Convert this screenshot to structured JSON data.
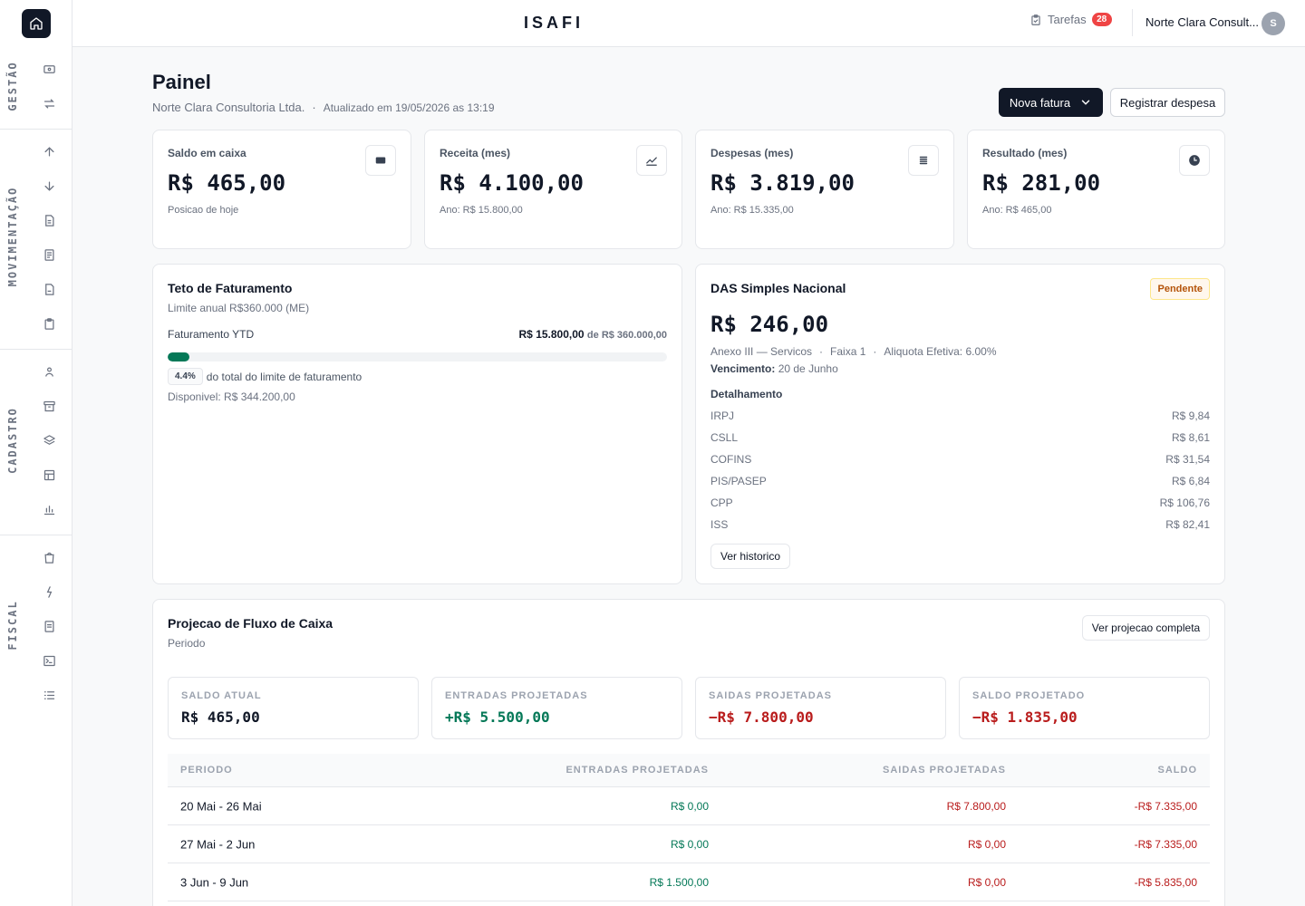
{
  "app": {
    "brand": "ISAFI"
  },
  "topbar": {
    "tasks_label": "Tarefas",
    "tasks_count": "28",
    "company": "Norte Clara Consult...",
    "avatar_initial": "S"
  },
  "sidebar": {
    "sections": [
      {
        "label": "GESTÃO",
        "icons": [
          "wallet-icon",
          "transfer-icon"
        ]
      },
      {
        "label": "MOVIMENTAÇÃO",
        "icons": [
          "arrow-up-icon",
          "arrow-down-icon",
          "document-icon",
          "invoice-icon",
          "receipt-icon",
          "clipboard-icon"
        ]
      },
      {
        "label": "CADASTRO",
        "icons": [
          "user-icon",
          "archive-icon",
          "layers-icon",
          "table-icon",
          "bar-chart-icon"
        ]
      },
      {
        "label": "FISCAL",
        "icons": [
          "shopping-bag-icon",
          "dollar-icon",
          "file-text-icon",
          "terminal-icon",
          "list-icon"
        ]
      }
    ]
  },
  "header": {
    "title": "Painel",
    "company": "Norte Clara Consultoria Ltda.",
    "updated": "Atualizado em 19/05/2026 as 13:19",
    "new_invoice": "Nova fatura",
    "register_expense": "Registrar despesa"
  },
  "stats": [
    {
      "label": "Saldo em caixa",
      "value": "R$ 465,00",
      "sub": "Posicao de hoje",
      "icon": "wallet-icon"
    },
    {
      "label": "Receita (mes)",
      "value": "R$ 4.100,00",
      "sub": "Ano: R$ 15.800,00",
      "icon": "trend-up-icon"
    },
    {
      "label": "Despesas (mes)",
      "value": "R$ 3.819,00",
      "sub": "Ano: R$ 15.335,00",
      "icon": "list-icon"
    },
    {
      "label": "Resultado (mes)",
      "value": "R$ 281,00",
      "sub": "Ano: R$ 465,00",
      "icon": "clock-icon"
    }
  ],
  "ceiling": {
    "title": "Teto de Faturamento",
    "subtitle": "Limite anual R$360.000 (ME)",
    "ytd_label": "Faturamento YTD",
    "ytd_value": "R$ 15.800,00",
    "ytd_of": "de R$ 360.000,00",
    "progress_pct": 4.4,
    "pct_badge": "4.4%",
    "pct_text": "do total do limite de faturamento",
    "available": "Disponivel: R$ 344.200,00"
  },
  "das": {
    "title": "DAS Simples Nacional",
    "status": "Pendente",
    "value": "R$ 246,00",
    "annex": "Anexo III — Servicos",
    "bracket": "Faixa 1",
    "rate": "Aliquota Efetiva: 6.00%",
    "due_label": "Vencimento:",
    "due_value": "20 de Junho",
    "details_title": "Detalhamento",
    "items": [
      {
        "name": "IRPJ",
        "value": "R$ 9,84"
      },
      {
        "name": "CSLL",
        "value": "R$ 8,61"
      },
      {
        "name": "COFINS",
        "value": "R$ 31,54"
      },
      {
        "name": "PIS/PASEP",
        "value": "R$ 6,84"
      },
      {
        "name": "CPP",
        "value": "R$ 106,76"
      },
      {
        "name": "ISS",
        "value": "R$ 82,41"
      }
    ],
    "history_button": "Ver historico"
  },
  "projection": {
    "title": "Projecao de Fluxo de Caixa",
    "subtitle": "Periodo",
    "full_button": "Ver projecao completa",
    "summary": [
      {
        "label": "SALDO ATUAL",
        "value": "R$ 465,00",
        "tone": "neutral"
      },
      {
        "label": "ENTRADAS PROJETADAS",
        "value": "+R$ 5.500,00",
        "tone": "pos"
      },
      {
        "label": "SAIDAS PROJETADAS",
        "value": "−R$ 7.800,00",
        "tone": "neg"
      },
      {
        "label": "SALDO PROJETADO",
        "value": "−R$ 1.835,00",
        "tone": "neg"
      }
    ],
    "columns": [
      "PERIODO",
      "ENTRADAS PROJETADAS",
      "SAIDAS PROJETADAS",
      "SALDO"
    ],
    "rows": [
      {
        "period": "20 Mai - 26 Mai",
        "in": "R$ 0,00",
        "out": "R$ 7.800,00",
        "balance": "-R$ 7.335,00"
      },
      {
        "period": "27 Mai - 2 Jun",
        "in": "R$ 0,00",
        "out": "R$ 0,00",
        "balance": "-R$ 7.335,00"
      },
      {
        "period": "3 Jun - 9 Jun",
        "in": "R$ 1.500,00",
        "out": "R$ 0,00",
        "balance": "-R$ 5.835,00"
      }
    ]
  },
  "colors": {
    "primary": "#111827",
    "positive": "#047857",
    "negative": "#b91c1c",
    "badge_red": "#ef4444",
    "pending_text": "#b45309"
  }
}
